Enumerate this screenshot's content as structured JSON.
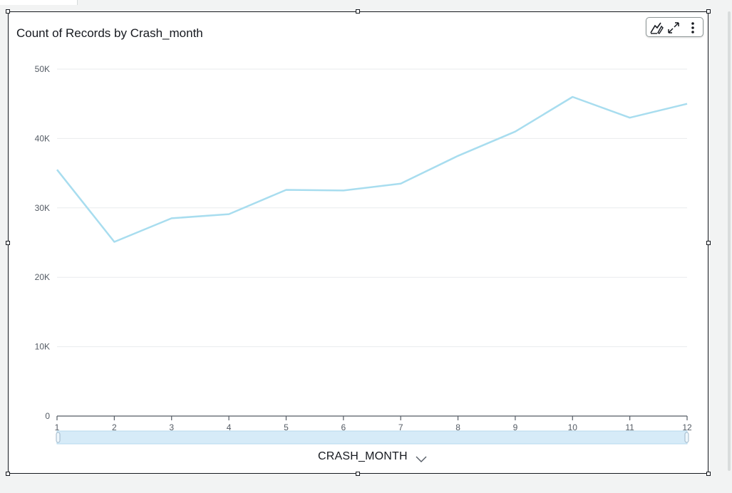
{
  "visual": {
    "title": "Count of Records by Crash_month",
    "menu_icons": [
      "format-visual-icon",
      "expand-icon",
      "more-options-icon"
    ]
  },
  "chart_data": {
    "type": "line",
    "title": "Count of Records by Crash_month",
    "xlabel": "CRASH_MONTH",
    "ylabel": "",
    "x": [
      1,
      2,
      3,
      4,
      5,
      6,
      7,
      8,
      9,
      10,
      11,
      12
    ],
    "series": [
      {
        "values": [
          35500,
          25100,
          28500,
          29100,
          32600,
          32500,
          33500,
          37500,
          41000,
          46000,
          43000,
          45000
        ]
      }
    ],
    "ylim": [
      0,
      50000
    ],
    "yticks": [
      0,
      10000,
      20000,
      30000,
      40000,
      50000
    ],
    "ytick_labels": [
      "0",
      "10K",
      "20K",
      "30K",
      "40K",
      "50K"
    ],
    "grid": true,
    "line_color": "#a8ddef"
  }
}
